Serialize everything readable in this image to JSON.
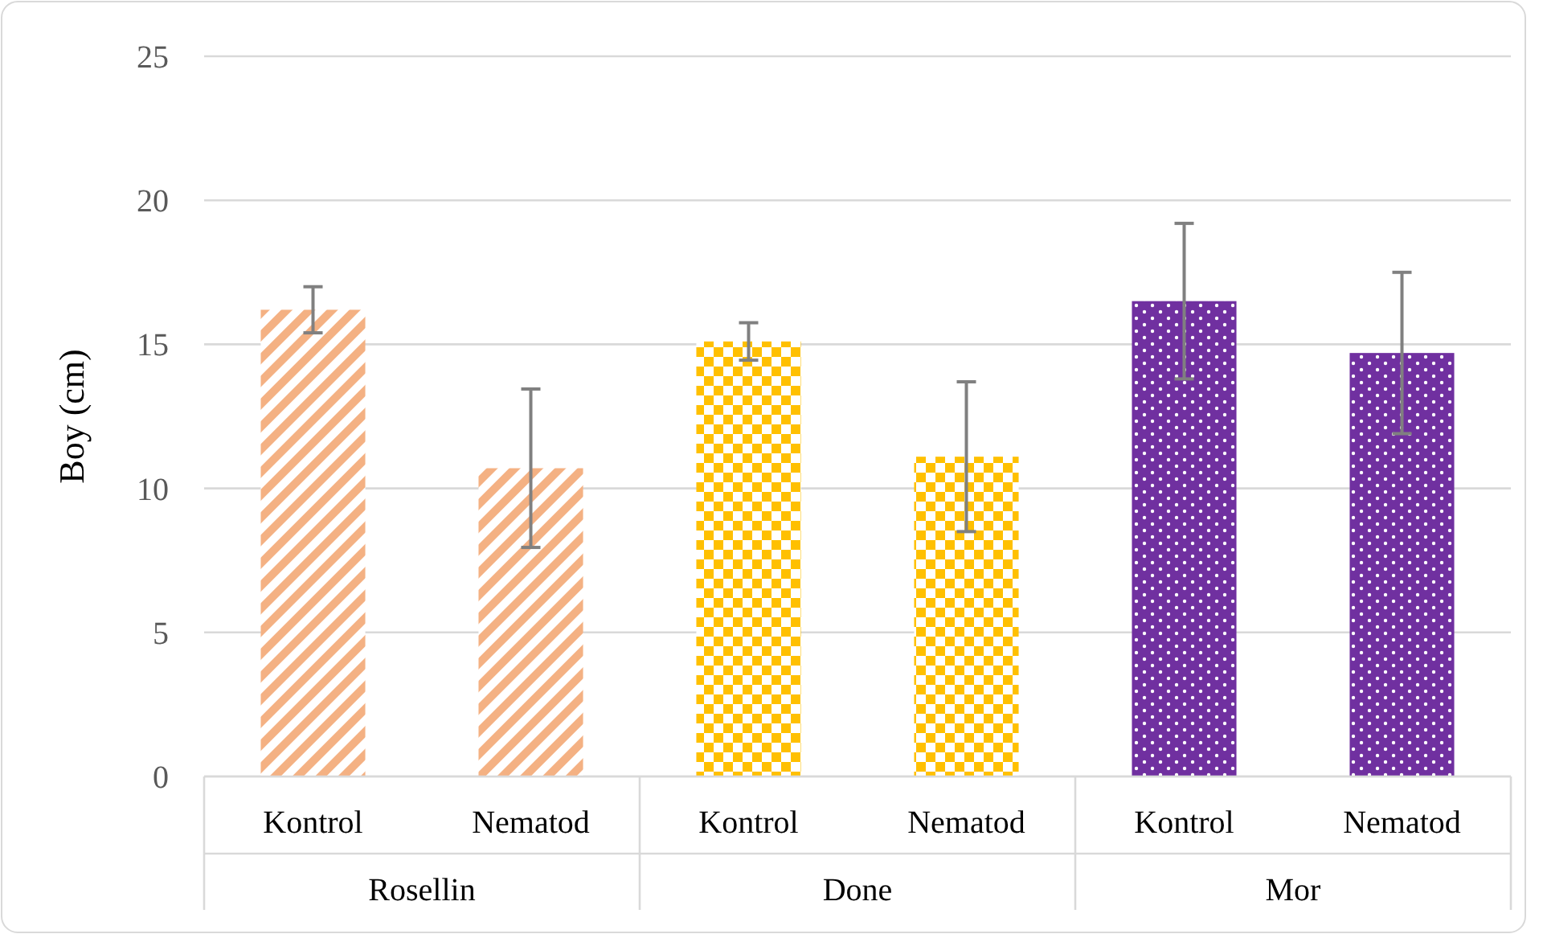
{
  "chart_data": {
    "type": "bar",
    "ylabel": "Boy (cm)",
    "categories": [
      "Kontrol",
      "Nematod",
      "Kontrol",
      "Nematod",
      "Kontrol",
      "Nematod"
    ],
    "values": [
      16.2,
      10.7,
      15.1,
      11.1,
      16.5,
      14.7
    ],
    "colors": [
      "#f4b183",
      "#f4b183",
      "#ffc000",
      "#ffc000",
      "#7030a0",
      "#7030a0"
    ],
    "errors": [
      0.8,
      2.75,
      0.65,
      2.6,
      2.7,
      2.8
    ],
    "ylim": [
      0,
      25
    ],
    "yticks": [
      0,
      5,
      10,
      15,
      20,
      25
    ],
    "grid": "y",
    "annotations": [
      "Rosellin",
      "Done",
      "Mor"
    ]
  }
}
